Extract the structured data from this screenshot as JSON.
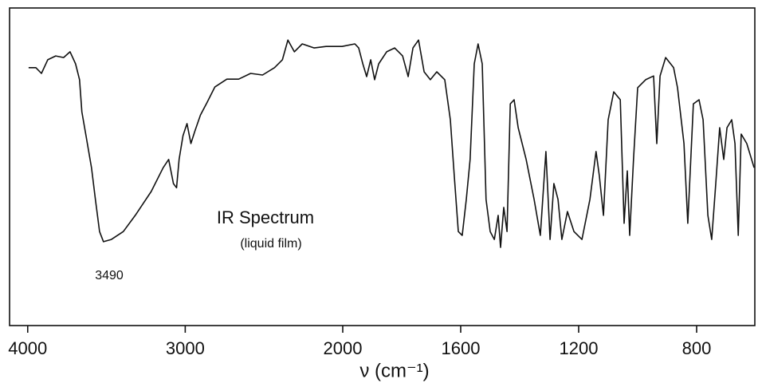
{
  "chart_data": {
    "type": "line",
    "title": "IR Spectrum",
    "subtitle": "(liquid film)",
    "x_label": "ν (cm⁻¹)",
    "annotations": [
      "3490"
    ],
    "color": "#111111",
    "xlim": [
      4100,
      600
    ],
    "xscale_break": 2000,
    "xticks": [
      4000,
      3000,
      2000,
      1600,
      1200,
      800
    ],
    "ylim": [
      0,
      100
    ],
    "grid": false,
    "x": [
      3994,
      3948,
      3913,
      3873,
      3822,
      3772,
      3731,
      3696,
      3671,
      3656,
      3630,
      3595,
      3570,
      3544,
      3519,
      3469,
      3393,
      3317,
      3216,
      3140,
      3105,
      3075,
      3055,
      3039,
      3014,
      2989,
      2964,
      2938,
      2903,
      2863,
      2812,
      2736,
      2661,
      2585,
      2509,
      2433,
      2383,
      2348,
      2307,
      2257,
      2181,
      2106,
      2004,
      1959,
      1946,
      1932,
      1919,
      1905,
      1892,
      1878,
      1851,
      1824,
      1797,
      1778,
      1762,
      1743,
      1724,
      1703,
      1681,
      1654,
      1635,
      1622,
      1608,
      1595,
      1581,
      1568,
      1554,
      1541,
      1527,
      1514,
      1500,
      1486,
      1473,
      1465,
      1454,
      1443,
      1432,
      1419,
      1405,
      1378,
      1351,
      1330,
      1311,
      1297,
      1284,
      1270,
      1257,
      1238,
      1216,
      1189,
      1162,
      1141,
      1130,
      1116,
      1100,
      1081,
      1059,
      1046,
      1035,
      1027,
      1014,
      1000,
      973,
      946,
      935,
      924,
      905,
      878,
      865,
      843,
      830,
      811,
      792,
      778,
      762,
      749,
      735,
      722,
      708,
      697,
      681,
      670,
      659,
      649,
      630,
      605
    ],
    "values": [
      81.2,
      81.2,
      79.4,
      83.7,
      84.9,
      84.4,
      86.2,
      82.4,
      77.4,
      67.3,
      59.8,
      49.7,
      39.7,
      29.6,
      26.4,
      27.1,
      29.6,
      34.7,
      42.2,
      49.7,
      52.3,
      44.7,
      43.4,
      52.3,
      59.8,
      63.6,
      57.3,
      61.3,
      66.3,
      70.1,
      75.1,
      77.6,
      77.6,
      79.4,
      78.9,
      81.2,
      83.7,
      89.9,
      86.2,
      88.7,
      87.4,
      87.9,
      87.9,
      88.7,
      87.4,
      82.4,
      78.4,
      83.7,
      77.4,
      82.4,
      86.2,
      87.4,
      84.9,
      78.4,
      87.4,
      89.9,
      79.9,
      77.4,
      79.9,
      77.4,
      64.8,
      47.2,
      29.6,
      28.4,
      39.7,
      52.3,
      82.4,
      88.7,
      82.4,
      39.7,
      29.6,
      27.1,
      34.7,
      24.6,
      37.2,
      29.6,
      69.8,
      71.1,
      62.3,
      52.3,
      39.7,
      28.4,
      54.8,
      27.1,
      44.7,
      39.7,
      27.1,
      35.9,
      29.6,
      27.1,
      39.7,
      54.8,
      47.2,
      34.7,
      64.8,
      73.6,
      71.1,
      32.2,
      48.7,
      28.4,
      52.3,
      74.9,
      77.4,
      78.6,
      57.3,
      78.6,
      84.4,
      81.2,
      74.9,
      57.3,
      32.2,
      69.8,
      71.1,
      64.8,
      34.7,
      27.1,
      44.7,
      62.3,
      52.3,
      62.3,
      64.8,
      57.3,
      28.4,
      60.3,
      57.3,
      49.7
    ]
  }
}
